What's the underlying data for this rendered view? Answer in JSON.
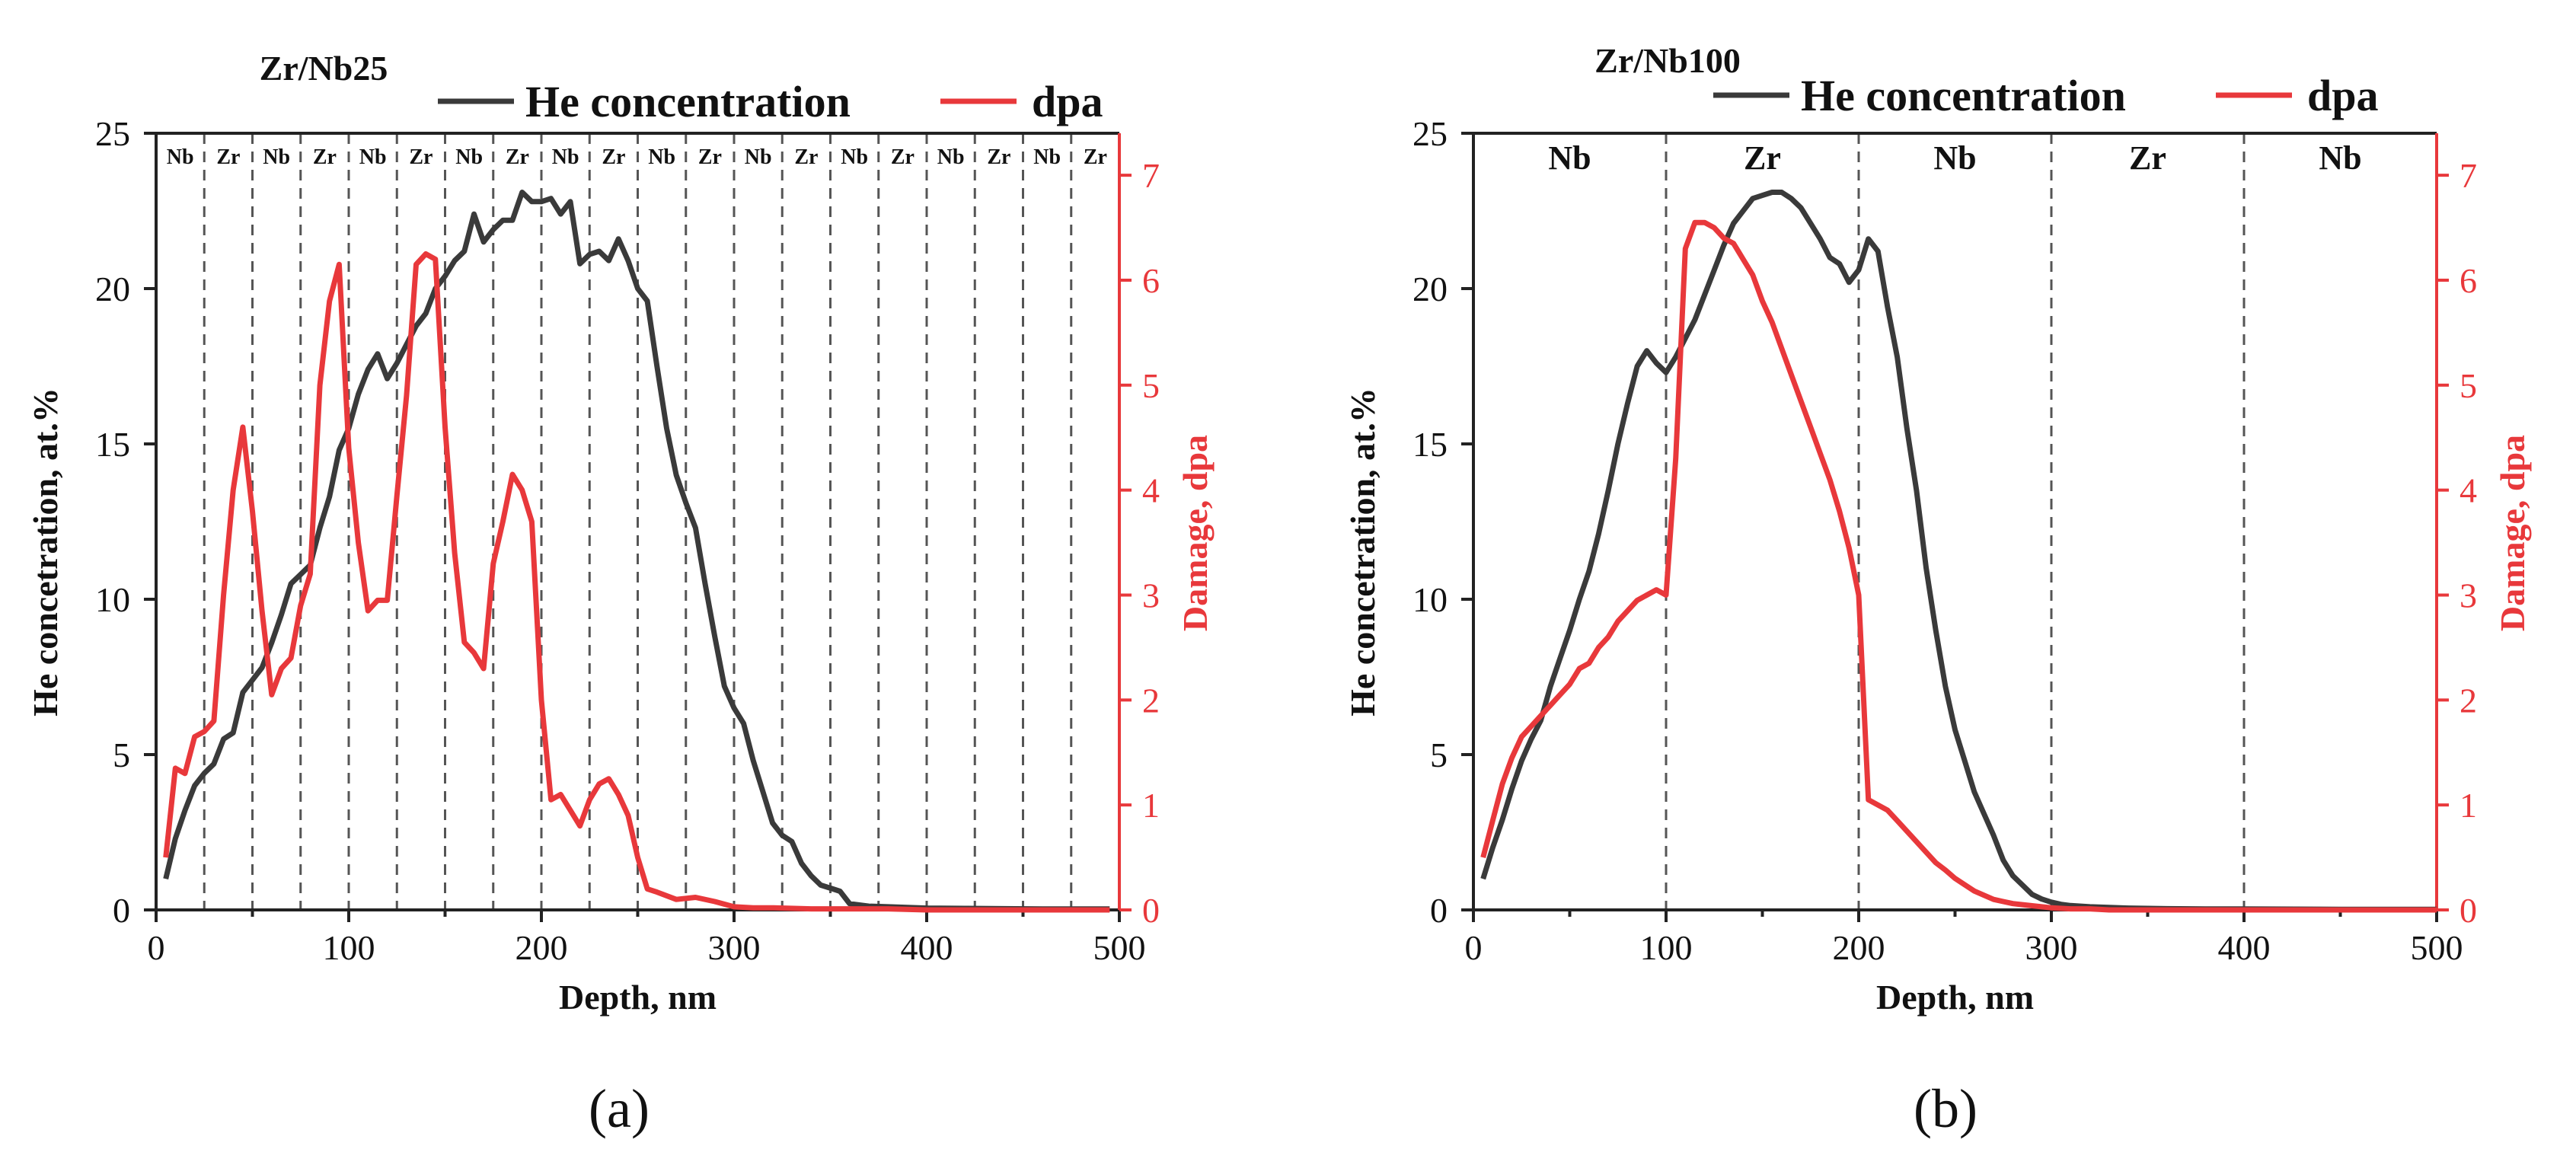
{
  "colors": {
    "he": "#3a3a3a",
    "dpa": "#e8383b",
    "axis": "#222222"
  },
  "chart_data": [
    {
      "id": "a",
      "type": "line",
      "title": "Zr/Nb25",
      "panel_label": "(a)",
      "xlabel": "Depth, nm",
      "ylabel": "He concetration, at.%",
      "y2label": "Damage, dpa",
      "xlim": [
        0,
        500
      ],
      "ylim": [
        0,
        25
      ],
      "y2lim": [
        0,
        7.4
      ],
      "xticks": [
        "0",
        "100",
        "200",
        "300",
        "400",
        "500"
      ],
      "yticks": [
        "0",
        "5",
        "10",
        "15",
        "20",
        "25"
      ],
      "y2ticks": [
        "0",
        "1",
        "2",
        "3",
        "4",
        "5",
        "6",
        "7"
      ],
      "legend": [
        "He concentration",
        "dpa"
      ],
      "layers": [
        "Nb",
        "Zr",
        "Nb",
        "Zr",
        "Nb",
        "Zr",
        "Nb",
        "Zr",
        "Nb",
        "Zr",
        "Nb",
        "Zr",
        "Nb",
        "Zr",
        "Nb",
        "Zr",
        "Nb",
        "Zr",
        "Nb",
        "Zr"
      ],
      "layer_width": 25,
      "series": [
        {
          "name": "He concentration",
          "axis": "left",
          "x": [
            5,
            10,
            15,
            20,
            25,
            30,
            35,
            40,
            45,
            50,
            55,
            60,
            65,
            70,
            75,
            80,
            85,
            90,
            95,
            100,
            105,
            110,
            115,
            120,
            125,
            130,
            135,
            140,
            145,
            150,
            155,
            160,
            165,
            170,
            175,
            180,
            185,
            190,
            195,
            200,
            205,
            210,
            215,
            220,
            225,
            230,
            235,
            240,
            245,
            250,
            255,
            260,
            265,
            270,
            275,
            280,
            285,
            290,
            295,
            300,
            305,
            310,
            315,
            320,
            325,
            330,
            335,
            340,
            345,
            350,
            355,
            360,
            370,
            380,
            390,
            400,
            420,
            440,
            460,
            480,
            495
          ],
          "values": [
            1.0,
            2.3,
            3.2,
            4.0,
            4.4,
            4.7,
            5.5,
            5.7,
            7.0,
            7.4,
            7.8,
            8.6,
            9.5,
            10.5,
            10.8,
            11.1,
            12.3,
            13.3,
            14.8,
            15.5,
            16.6,
            17.4,
            17.9,
            17.1,
            17.6,
            18.2,
            18.8,
            19.2,
            20.0,
            20.4,
            20.9,
            21.2,
            22.4,
            21.5,
            21.9,
            22.2,
            22.2,
            23.1,
            22.8,
            22.8,
            22.9,
            22.4,
            22.8,
            20.8,
            21.1,
            21.2,
            20.9,
            21.6,
            20.9,
            20.0,
            19.6,
            17.5,
            15.5,
            14.0,
            13.1,
            12.3,
            10.5,
            8.8,
            7.2,
            6.5,
            6.0,
            4.8,
            3.8,
            2.8,
            2.4,
            2.2,
            1.5,
            1.1,
            0.8,
            0.7,
            0.6,
            0.2,
            0.12,
            0.1,
            0.08,
            0.06,
            0.05,
            0.04,
            0.03,
            0.03,
            0.03
          ]
        },
        {
          "name": "dpa",
          "axis": "right",
          "x": [
            5,
            10,
            15,
            20,
            25,
            30,
            35,
            40,
            45,
            50,
            55,
            60,
            65,
            70,
            75,
            80,
            85,
            90,
            95,
            100,
            105,
            110,
            115,
            120,
            125,
            130,
            135,
            140,
            145,
            150,
            155,
            160,
            165,
            170,
            175,
            180,
            185,
            190,
            195,
            200,
            205,
            210,
            215,
            220,
            225,
            230,
            235,
            240,
            245,
            250,
            255,
            260,
            270,
            280,
            290,
            300,
            310,
            320,
            340,
            360,
            380,
            400,
            420,
            440,
            460,
            480,
            495
          ],
          "values": [
            0.5,
            1.35,
            1.3,
            1.65,
            1.7,
            1.8,
            3.0,
            4.0,
            4.6,
            3.8,
            2.85,
            2.05,
            2.3,
            2.4,
            2.9,
            3.2,
            5.0,
            5.8,
            6.15,
            4.4,
            3.5,
            2.85,
            2.95,
            2.95,
            3.95,
            4.9,
            6.15,
            6.25,
            6.2,
            4.6,
            3.4,
            2.55,
            2.45,
            2.3,
            3.3,
            3.7,
            4.15,
            4.0,
            3.7,
            2.0,
            1.05,
            1.1,
            0.95,
            0.8,
            1.05,
            1.2,
            1.25,
            1.1,
            0.9,
            0.5,
            0.2,
            0.17,
            0.1,
            0.12,
            0.08,
            0.03,
            0.02,
            0.02,
            0.01,
            0.01,
            0.01,
            0.0,
            0.0,
            0.0,
            0.0,
            0.0,
            0.0
          ]
        }
      ]
    },
    {
      "id": "b",
      "type": "line",
      "title": "Zr/Nb100",
      "panel_label": "(b)",
      "xlabel": "Depth, nm",
      "ylabel": "He concetration, at.%",
      "y2label": "Damage, dpa",
      "xlim": [
        0,
        500
      ],
      "ylim": [
        0,
        25
      ],
      "y2lim": [
        0,
        7.4
      ],
      "xticks": [
        "0",
        "100",
        "200",
        "300",
        "400",
        "500"
      ],
      "yticks": [
        "0",
        "5",
        "10",
        "15",
        "20",
        "25"
      ],
      "y2ticks": [
        "0",
        "1",
        "2",
        "3",
        "4",
        "5",
        "6",
        "7"
      ],
      "legend": [
        "He concentration",
        "dpa"
      ],
      "layers": [
        "Nb",
        "Zr",
        "Nb",
        "Zr",
        "Nb"
      ],
      "layer_width": 100,
      "series": [
        {
          "name": "He concentration",
          "axis": "left",
          "x": [
            5,
            10,
            15,
            20,
            25,
            30,
            35,
            40,
            45,
            50,
            55,
            60,
            65,
            70,
            75,
            80,
            85,
            90,
            95,
            100,
            105,
            110,
            115,
            120,
            125,
            130,
            135,
            140,
            145,
            150,
            155,
            160,
            165,
            170,
            175,
            180,
            185,
            190,
            195,
            200,
            205,
            210,
            215,
            220,
            225,
            230,
            235,
            240,
            245,
            250,
            255,
            260,
            265,
            270,
            275,
            280,
            285,
            290,
            295,
            300,
            305,
            310,
            320,
            330,
            340,
            350,
            360,
            380,
            400,
            450,
            500
          ],
          "values": [
            1.0,
            2.0,
            2.9,
            3.9,
            4.8,
            5.5,
            6.1,
            7.2,
            8.1,
            9.0,
            10.0,
            10.9,
            12.1,
            13.5,
            15.0,
            16.3,
            17.5,
            18.0,
            17.6,
            17.3,
            17.8,
            18.4,
            19.0,
            19.8,
            20.6,
            21.4,
            22.1,
            22.5,
            22.9,
            23.0,
            23.1,
            23.1,
            22.9,
            22.6,
            22.1,
            21.6,
            21.0,
            20.8,
            20.2,
            20.6,
            21.6,
            21.2,
            19.4,
            17.8,
            15.5,
            13.5,
            11.0,
            9.0,
            7.2,
            5.8,
            4.8,
            3.8,
            3.1,
            2.4,
            1.6,
            1.1,
            0.8,
            0.5,
            0.35,
            0.25,
            0.18,
            0.14,
            0.1,
            0.08,
            0.06,
            0.05,
            0.04,
            0.03,
            0.03,
            0.02,
            0.02
          ]
        },
        {
          "name": "dpa",
          "axis": "right",
          "x": [
            5,
            10,
            15,
            20,
            25,
            30,
            35,
            40,
            45,
            50,
            55,
            60,
            65,
            70,
            75,
            80,
            85,
            90,
            95,
            100,
            105,
            110,
            115,
            120,
            125,
            130,
            135,
            140,
            145,
            150,
            155,
            160,
            165,
            170,
            175,
            180,
            185,
            190,
            195,
            200,
            205,
            210,
            215,
            220,
            225,
            230,
            235,
            240,
            245,
            250,
            255,
            260,
            265,
            270,
            275,
            280,
            285,
            290,
            295,
            300,
            310,
            320,
            330,
            350,
            400,
            450,
            500
          ],
          "values": [
            0.5,
            0.85,
            1.2,
            1.45,
            1.65,
            1.75,
            1.85,
            1.95,
            2.05,
            2.15,
            2.3,
            2.35,
            2.5,
            2.6,
            2.75,
            2.85,
            2.95,
            3.0,
            3.05,
            3.0,
            4.3,
            6.3,
            6.55,
            6.55,
            6.5,
            6.4,
            6.35,
            6.2,
            6.05,
            5.8,
            5.6,
            5.35,
            5.1,
            4.85,
            4.6,
            4.35,
            4.1,
            3.8,
            3.45,
            3.0,
            1.05,
            1.0,
            0.95,
            0.85,
            0.75,
            0.65,
            0.55,
            0.45,
            0.38,
            0.3,
            0.24,
            0.18,
            0.14,
            0.1,
            0.08,
            0.06,
            0.05,
            0.04,
            0.03,
            0.02,
            0.01,
            0.01,
            0.0,
            0.0,
            0.0,
            0.0,
            0.0
          ]
        }
      ]
    }
  ]
}
